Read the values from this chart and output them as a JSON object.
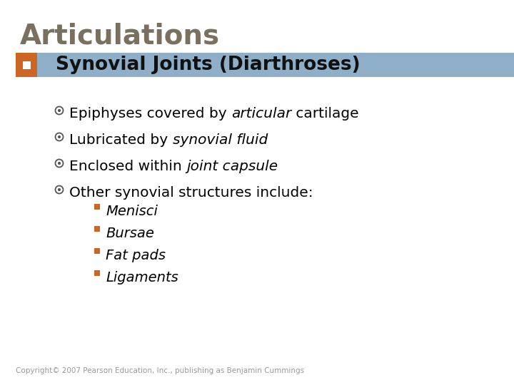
{
  "title": "Articulations",
  "title_color": "#7a7060",
  "title_fontsize": 28,
  "background_color": "#ffffff",
  "header_bar_color": "#8faec8",
  "orange_square_color": "#cc6622",
  "header_text": "Synovial Joints (Diarthroses)",
  "header_text_color": "#111111",
  "header_fontsize": 19,
  "bullet_circle_color": "#555555",
  "bullet_fontsize": 14.5,
  "sub_fontsize": 14,
  "sub_bullet_color": "#cc6622",
  "sub_items": [
    "Menisci",
    "Bursae",
    "Fat pads",
    "Ligaments"
  ],
  "copyright": "Copyright© 2007 Pearson Education, Inc., publishing as Benjamin Cummings",
  "copyright_fontsize": 7.5,
  "copyright_color": "#999999"
}
